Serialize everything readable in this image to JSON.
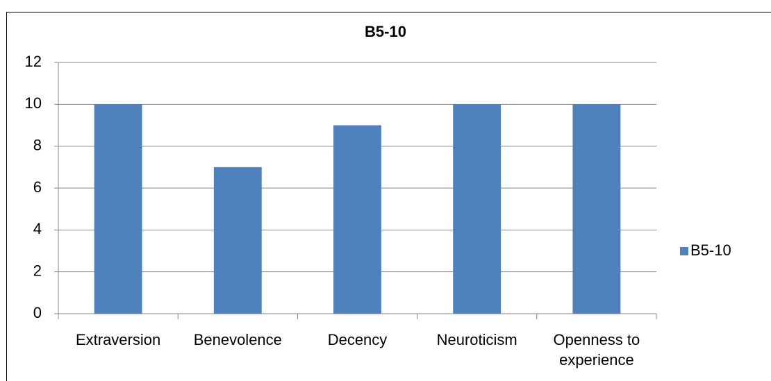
{
  "chart_data": {
    "type": "bar",
    "title": "B5-10",
    "categories": [
      "Extraversion",
      "Benevolence",
      "Decency",
      "Neuroticism",
      "Openness to experience"
    ],
    "series": [
      {
        "name": "B5-10",
        "color": "#4f81bd",
        "values": [
          10,
          7,
          9,
          10,
          10
        ]
      }
    ],
    "ylim": [
      0,
      12
    ],
    "yticks": [
      0,
      2,
      4,
      6,
      8,
      10,
      12
    ],
    "grid": true,
    "legend": "right"
  }
}
